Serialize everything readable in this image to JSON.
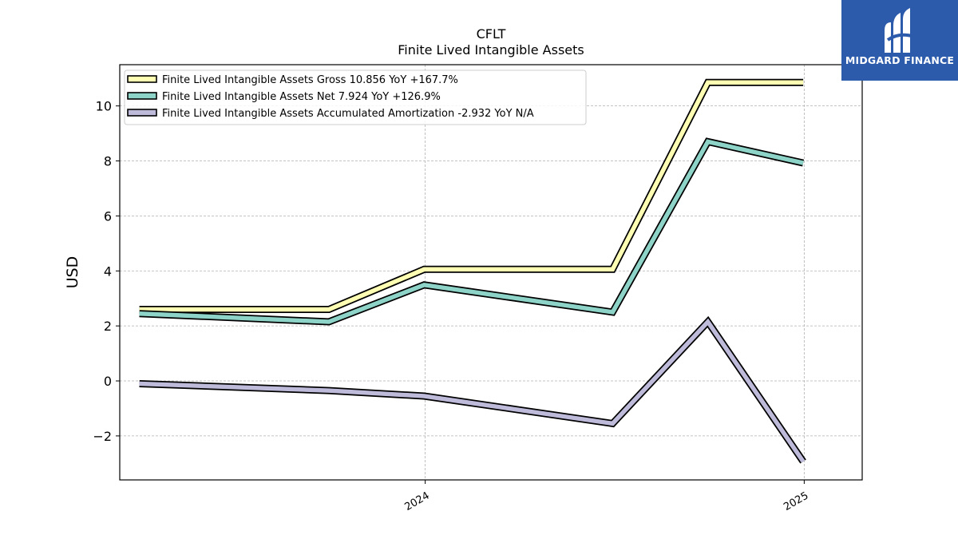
{
  "chart_data": {
    "type": "line",
    "title": "CFLT",
    "subtitle": "Finite Lived Intangible Assets",
    "ylabel": "USD",
    "xlabel": "",
    "ylim": [
      -3.6,
      11.5
    ],
    "yticks": [
      -2,
      0,
      2,
      4,
      6,
      8,
      10
    ],
    "ytick_labels": [
      "−2",
      "0",
      "2",
      "4",
      "6",
      "8",
      "10"
    ],
    "xlim": [
      "2023-03-12",
      "2025-02-26"
    ],
    "xticks": [
      {
        "date": "2024-01-01",
        "label": "2024"
      },
      {
        "date": "2025-01-01",
        "label": "2025"
      }
    ],
    "x": [
      "2023-03-31",
      "2023-09-30",
      "2023-12-31",
      "2024-06-30",
      "2024-09-30",
      "2024-12-31"
    ],
    "grid": true,
    "legend_position": "upper-left",
    "series": [
      {
        "name": "Finite Lived Intangible Assets Gross",
        "legend_label": "Finite Lived Intangible Assets Gross  10.856 YoY +167.7%",
        "color": "#ffffb3",
        "values": [
          2.6,
          2.6,
          4.056,
          4.056,
          10.856,
          10.856
        ]
      },
      {
        "name": "Finite Lived Intangible Assets Net",
        "legend_label": "Finite Lived Intangible Assets Net  7.924 YoY +126.9%",
        "color": "#8dd3c7",
        "values": [
          2.45,
          2.15,
          3.492,
          2.5,
          8.7,
          7.924
        ]
      },
      {
        "name": "Finite Lived Intangible Assets Accumulated Amortization",
        "legend_label": "Finite Lived Intangible Assets Accumulated Amortization  -2.932 YoY N/A",
        "color": "#bebada",
        "values": [
          -0.1,
          -0.35,
          -0.55,
          -1.55,
          2.15,
          -2.932
        ]
      }
    ]
  },
  "logo": {
    "text": "MIDGARD FINANCE",
    "icon": "midgard-logo-icon"
  }
}
